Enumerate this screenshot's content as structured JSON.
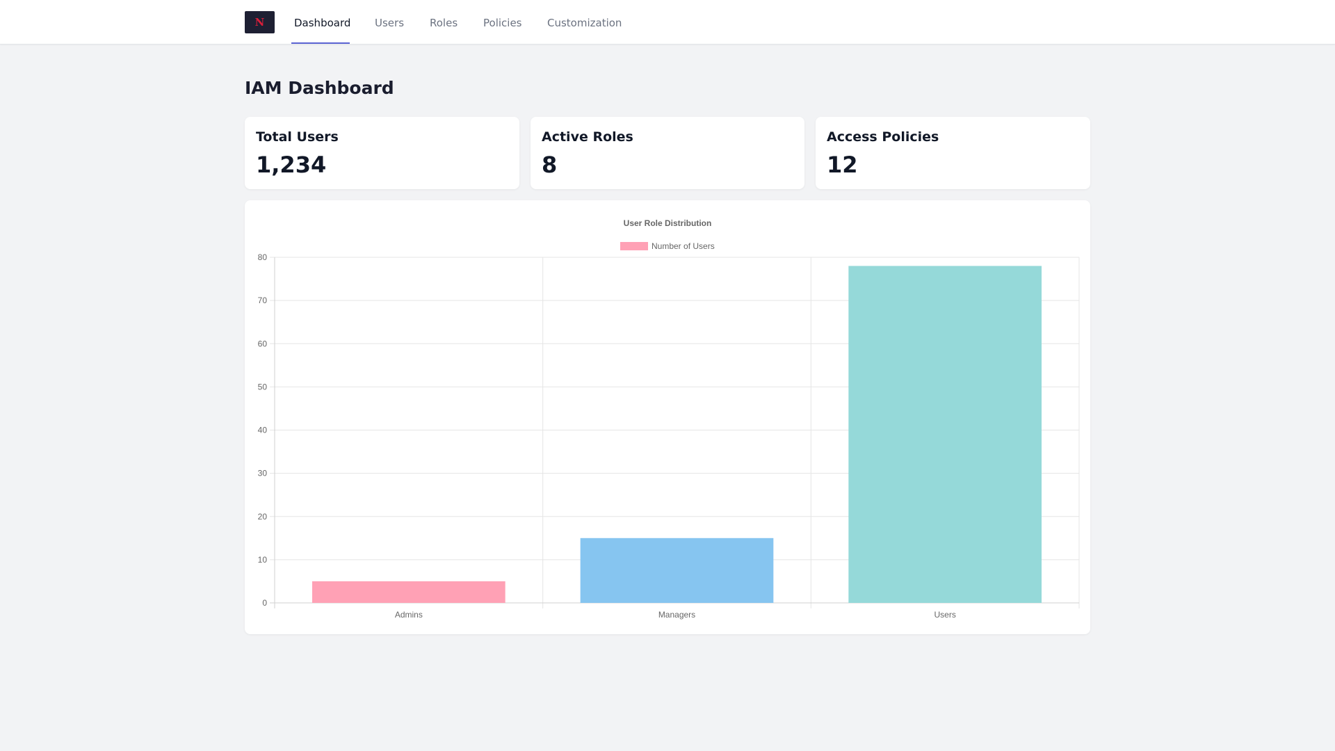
{
  "nav": {
    "logo_icon": "brand-logo-icon",
    "tabs": [
      {
        "label": "Dashboard",
        "active": true
      },
      {
        "label": "Users",
        "active": false
      },
      {
        "label": "Roles",
        "active": false
      },
      {
        "label": "Policies",
        "active": false
      },
      {
        "label": "Customization",
        "active": false
      }
    ],
    "accent_color": "#5b63d3"
  },
  "page": {
    "title": "IAM Dashboard"
  },
  "stats": [
    {
      "label": "Total Users",
      "value": "1,234"
    },
    {
      "label": "Active Roles",
      "value": "8"
    },
    {
      "label": "Access Policies",
      "value": "12"
    }
  ],
  "chart_data": {
    "type": "bar",
    "title": "User Role Distribution",
    "categories": [
      "Admins",
      "Managers",
      "Users"
    ],
    "series": [
      {
        "name": "Number of Users",
        "values": [
          5,
          15,
          78
        ]
      }
    ],
    "bar_colors": [
      "#ffa1b5",
      "#86c5f0",
      "#95d9d9"
    ],
    "legend_color": "#ffa1b5",
    "ylim": [
      0,
      80
    ],
    "yticks": [
      0,
      10,
      20,
      30,
      40,
      50,
      60,
      70,
      80
    ],
    "xlabel": "",
    "ylabel": "",
    "grid": true,
    "legend_position": "top"
  }
}
